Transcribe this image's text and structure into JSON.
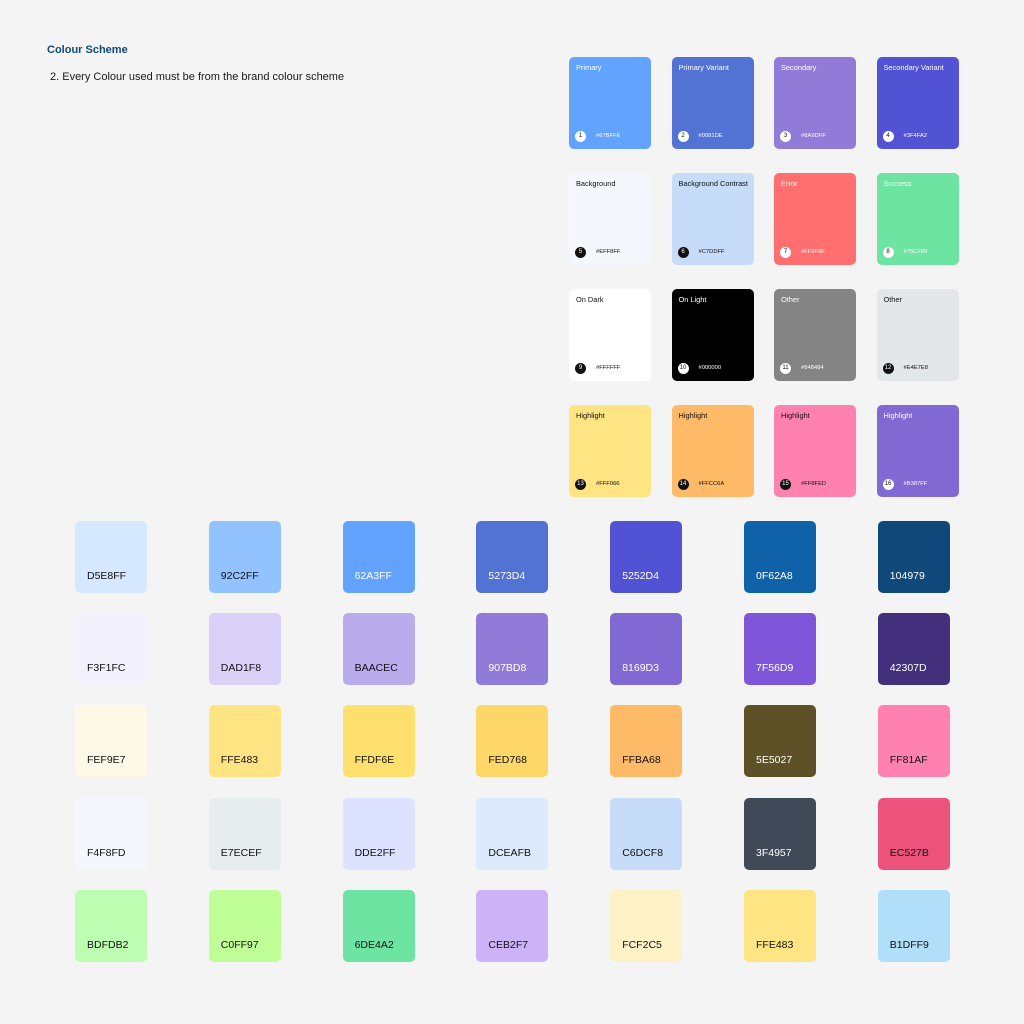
{
  "header": {
    "title": "Colour Scheme",
    "rule": "2. Every Colour used must be from the brand colour scheme"
  },
  "brand_colors": [
    {
      "num": "1",
      "label": "Primary",
      "hex": "#67BFFE",
      "color": "#62A3FF",
      "text": "light"
    },
    {
      "num": "2",
      "label": "Primary Variant",
      "hex": "#0081DE",
      "color": "#5273D4",
      "text": "light"
    },
    {
      "num": "3",
      "label": "Secondary",
      "hex": "#8A9DFF",
      "color": "#907BD8",
      "text": "light"
    },
    {
      "num": "4",
      "label": "Secondary Variant",
      "hex": "#3F4FA2",
      "color": "#5252D4",
      "text": "light"
    },
    {
      "num": "5",
      "label": "Background",
      "hex": "#EFF8FF",
      "color": "#F4F8FD",
      "text": "dark"
    },
    {
      "num": "6",
      "label": "Background Contrast",
      "hex": "#C7DDFF",
      "color": "#C6DCF8",
      "text": "dark"
    },
    {
      "num": "7",
      "label": "Error",
      "hex": "#FF6F6F",
      "color": "#FF6F6F",
      "text": "light"
    },
    {
      "num": "8",
      "label": "Success",
      "hex": "#75CF89",
      "color": "#6DE4A2",
      "text": "light"
    },
    {
      "num": "9",
      "label": "On Dark",
      "hex": "#FFFFFF",
      "color": "#FFFFFF",
      "text": "dark"
    },
    {
      "num": "10",
      "label": "On Light",
      "hex": "#000000",
      "color": "#000000",
      "text": "light"
    },
    {
      "num": "11",
      "label": "Other",
      "hex": "#848484",
      "color": "#848484",
      "text": "light"
    },
    {
      "num": "12",
      "label": "Other",
      "hex": "#E4E7E8",
      "color": "#E4E7E8",
      "text": "dark"
    },
    {
      "num": "13",
      "label": "Highlight",
      "hex": "#FFF066",
      "color": "#FFE483",
      "text": "dark"
    },
    {
      "num": "14",
      "label": "Highlight",
      "hex": "#FFCC6A",
      "color": "#FFBA68",
      "text": "dark"
    },
    {
      "num": "15",
      "label": "Highlight",
      "hex": "#FF8FED",
      "color": "#FF81AF",
      "text": "dark"
    },
    {
      "num": "16",
      "label": "Highlight",
      "hex": "#B387FF",
      "color": "#8169D3",
      "text": "light"
    }
  ],
  "palette_rows": [
    [
      {
        "code": "D5E8FF",
        "color": "#D5E8FF",
        "text": "dark"
      },
      {
        "code": "92C2FF",
        "color": "#92C2FF",
        "text": "dark"
      },
      {
        "code": "62A3FF",
        "color": "#62A3FF",
        "text": "light"
      },
      {
        "code": "5273D4",
        "color": "#5273D4",
        "text": "light"
      },
      {
        "code": "5252D4",
        "color": "#5252D4",
        "text": "light"
      },
      {
        "code": "0F62A8",
        "color": "#0F62A8",
        "text": "light"
      },
      {
        "code": "104979",
        "color": "#104979",
        "text": "light"
      }
    ],
    [
      {
        "code": "F3F1FC",
        "color": "#F3F1FC",
        "text": "dark"
      },
      {
        "code": "DAD1F8",
        "color": "#DAD1F8",
        "text": "dark"
      },
      {
        "code": "BAACEC",
        "color": "#BAACEC",
        "text": "dark"
      },
      {
        "code": "907BD8",
        "color": "#907BD8",
        "text": "light"
      },
      {
        "code": "8169D3",
        "color": "#8169D3",
        "text": "light"
      },
      {
        "code": "7F56D9",
        "color": "#7F56D9",
        "text": "light"
      },
      {
        "code": "42307D",
        "color": "#42307D",
        "text": "light"
      }
    ],
    [
      {
        "code": "FEF9E7",
        "color": "#FEF9E7",
        "text": "dark"
      },
      {
        "code": "FFE483",
        "color": "#FFE483",
        "text": "dark"
      },
      {
        "code": "FFDF6E",
        "color": "#FFDF6E",
        "text": "dark"
      },
      {
        "code": "FED768",
        "color": "#FED768",
        "text": "dark"
      },
      {
        "code": "FFBA68",
        "color": "#FFBA68",
        "text": "dark"
      },
      {
        "code": "5E5027",
        "color": "#5E5027",
        "text": "light"
      },
      {
        "code": "FF81AF",
        "color": "#FF81AF",
        "text": "dark"
      }
    ],
    [
      {
        "code": "F4F8FD",
        "color": "#F4F8FD",
        "text": "dark"
      },
      {
        "code": "E7ECEF",
        "color": "#E7ECEF",
        "text": "dark"
      },
      {
        "code": "DDE2FF",
        "color": "#DDE2FF",
        "text": "dark"
      },
      {
        "code": "DCEAFB",
        "color": "#DCEAFB",
        "text": "dark"
      },
      {
        "code": "C6DCF8",
        "color": "#C6DCF8",
        "text": "dark"
      },
      {
        "code": "3F4957",
        "color": "#3F4957",
        "text": "light"
      },
      {
        "code": "EC527B",
        "color": "#EC527B",
        "text": "dark"
      }
    ],
    [
      {
        "code": "BDFDB2",
        "color": "#BDFDB2",
        "text": "dark"
      },
      {
        "code": "C0FF97",
        "color": "#C0FF97",
        "text": "dark"
      },
      {
        "code": "6DE4A2",
        "color": "#6DE4A2",
        "text": "dark"
      },
      {
        "code": "CEB2F7",
        "color": "#CEB2F7",
        "text": "dark"
      },
      {
        "code": "FCF2C5",
        "color": "#FCF2C5",
        "text": "dark"
      },
      {
        "code": "FFE483",
        "color": "#FFE483",
        "text": "dark"
      },
      {
        "code": "B1DFF9",
        "color": "#B1DFF9",
        "text": "dark"
      }
    ]
  ]
}
